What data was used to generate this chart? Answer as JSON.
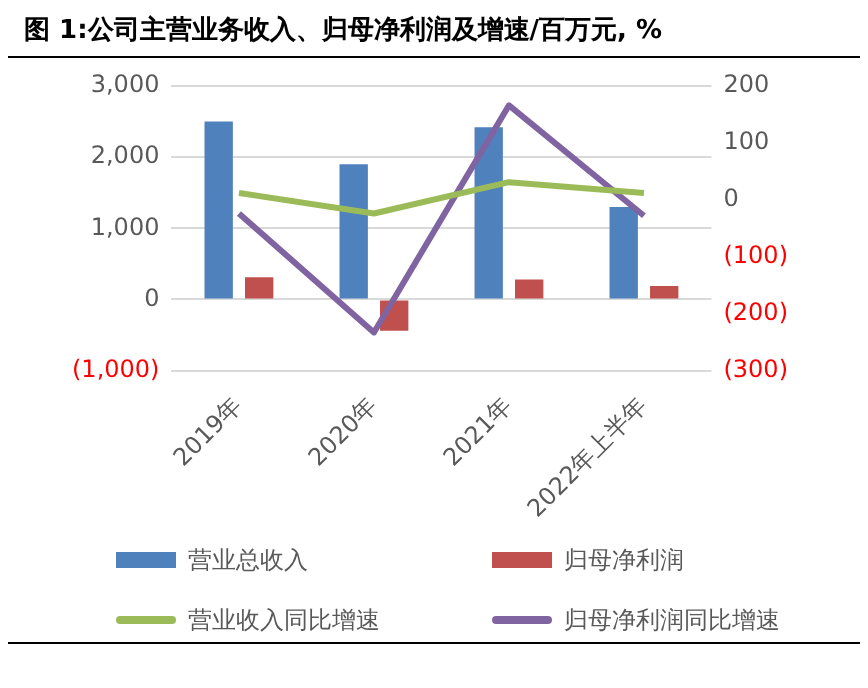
{
  "chart_data": {
    "type": "bar",
    "title": "图 1:公司主营业务收入、归母净利润及增速/百万元, %",
    "categories": [
      "2019年",
      "2020年",
      "2021年",
      "2022年上半年"
    ],
    "series": [
      {
        "name": "营业总收入",
        "color": "#4f81bd",
        "values": [
          2500,
          1900,
          2420,
          1300
        ]
      },
      {
        "name": "归母净利润",
        "color": "#c0504d",
        "values": [
          310,
          -440,
          280,
          190
        ]
      },
      {
        "name": "营业收入同比增速",
        "type": "line",
        "axis": "y2",
        "color": "#9bbb59",
        "values": [
          12,
          -24,
          31,
          12
        ]
      },
      {
        "name": "归母净利润同比增速",
        "type": "line",
        "axis": "y2",
        "color": "#8064a2",
        "values": [
          -24,
          -233,
          166,
          -28
        ]
      }
    ],
    "ylim": [
      -1000,
      3000
    ],
    "yticks": [
      {
        "value": -1000,
        "label": "(1,000)"
      },
      {
        "value": 0,
        "label": "0"
      },
      {
        "value": 1000,
        "label": "1,000"
      },
      {
        "value": 2000,
        "label": "2,000"
      },
      {
        "value": 3000,
        "label": "3,000"
      }
    ],
    "y2lim": [
      -300,
      200
    ],
    "y2ticks": [
      {
        "value": -300,
        "label": "(300)"
      },
      {
        "value": -200,
        "label": "(200)"
      },
      {
        "value": -100,
        "label": "(100)"
      },
      0,
      100,
      200
    ],
    "grid": "y",
    "legend": "bottom",
    "marker": "none",
    "line_style": "solid"
  }
}
